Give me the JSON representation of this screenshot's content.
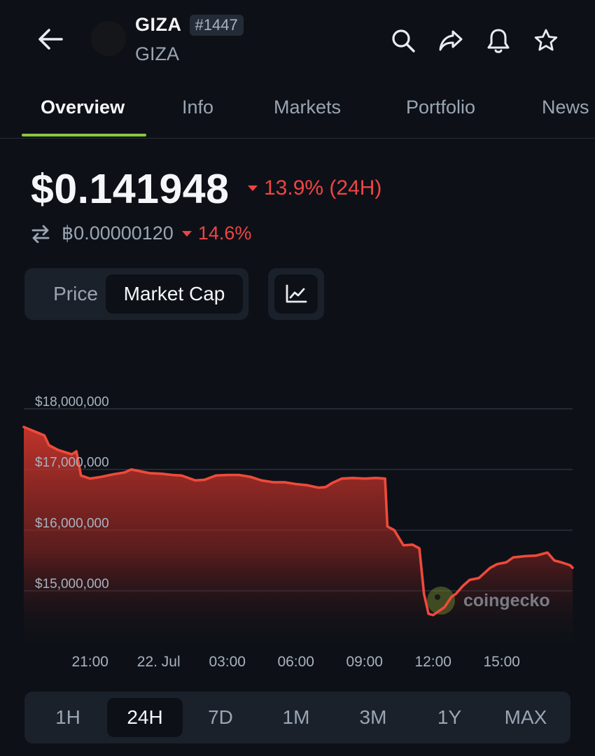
{
  "header": {
    "coin_symbol": "GIZA",
    "rank": "#1447",
    "coin_name": "GIZA",
    "icons": [
      "back-arrow-icon",
      "search-icon",
      "share-icon",
      "bell-icon",
      "star-icon"
    ]
  },
  "tabs": [
    {
      "label": "Overview",
      "active": true
    },
    {
      "label": "Info",
      "active": false
    },
    {
      "label": "Markets",
      "active": false
    },
    {
      "label": "Portfolio",
      "active": false
    },
    {
      "label": "News",
      "active": false
    }
  ],
  "price": {
    "value": "$0.141948",
    "change": "13.9% (24H)",
    "btc_value": "฿0.00000120",
    "btc_change": "14.6%"
  },
  "toggle": {
    "price_label": "Price",
    "market_cap_label": "Market Cap",
    "selected": "Market Cap"
  },
  "colors": {
    "accent": "#8dc63f",
    "negative": "#ef4444",
    "background": "#0d1117",
    "panel": "#1b212b"
  },
  "chart_data": {
    "type": "area",
    "y_tick_labels": [
      "$18,000,000",
      "$17,000,000",
      "$16,000,000",
      "$15,000,000"
    ],
    "y_ticks": [
      18000000,
      17000000,
      16000000,
      15000000
    ],
    "x_tick_labels": [
      "21:00",
      "22. Jul",
      "03:00",
      "06:00",
      "09:00",
      "12:00",
      "15:00"
    ],
    "x_ticks": [
      21,
      24,
      27,
      30,
      33,
      36,
      39
    ],
    "x_range": [
      18.1,
      42.1
    ],
    "ylim": [
      14000000,
      18800000
    ],
    "grid": true,
    "watermark": "coingecko",
    "series": [
      {
        "x": [
          18.1,
          19.0,
          19.2,
          19.6,
          20.2,
          20.4,
          20.6,
          21.0,
          21.5,
          22.0,
          22.5,
          22.8,
          23.2,
          23.6,
          24.1,
          24.6,
          25.0,
          25.6,
          26.0,
          26.5,
          27.0,
          27.5,
          28.0,
          28.5,
          29.0,
          29.5,
          30.0,
          30.5,
          31.0,
          31.3,
          31.6,
          32.0,
          32.5,
          33.0,
          33.5,
          33.9,
          34.0,
          34.3,
          34.7,
          35.1,
          35.4,
          35.6,
          35.8,
          36.0,
          36.5,
          36.8,
          37.0,
          37.3,
          37.6,
          38.0,
          38.5,
          38.8,
          39.2,
          39.5,
          40.0,
          40.5,
          41.0,
          41.3,
          41.6,
          42.0,
          42.1
        ],
        "values": [
          17700000,
          17560000,
          17400000,
          17320000,
          17250000,
          17300000,
          16900000,
          16850000,
          16880000,
          16920000,
          16950000,
          17000000,
          16970000,
          16940000,
          16930000,
          16910000,
          16900000,
          16820000,
          16830000,
          16900000,
          16910000,
          16910000,
          16880000,
          16820000,
          16790000,
          16790000,
          16760000,
          16740000,
          16700000,
          16710000,
          16780000,
          16850000,
          16860000,
          16850000,
          16860000,
          16850000,
          16060000,
          16000000,
          15750000,
          15760000,
          15700000,
          14950000,
          14620000,
          14600000,
          14730000,
          14900000,
          14950000,
          15080000,
          15180000,
          15210000,
          15380000,
          15440000,
          15470000,
          15550000,
          15570000,
          15580000,
          15630000,
          15500000,
          15470000,
          15420000,
          15380000
        ]
      }
    ]
  },
  "range": {
    "options": [
      "1H",
      "24H",
      "7D",
      "1M",
      "3M",
      "1Y",
      "MAX"
    ],
    "selected": "24H"
  }
}
